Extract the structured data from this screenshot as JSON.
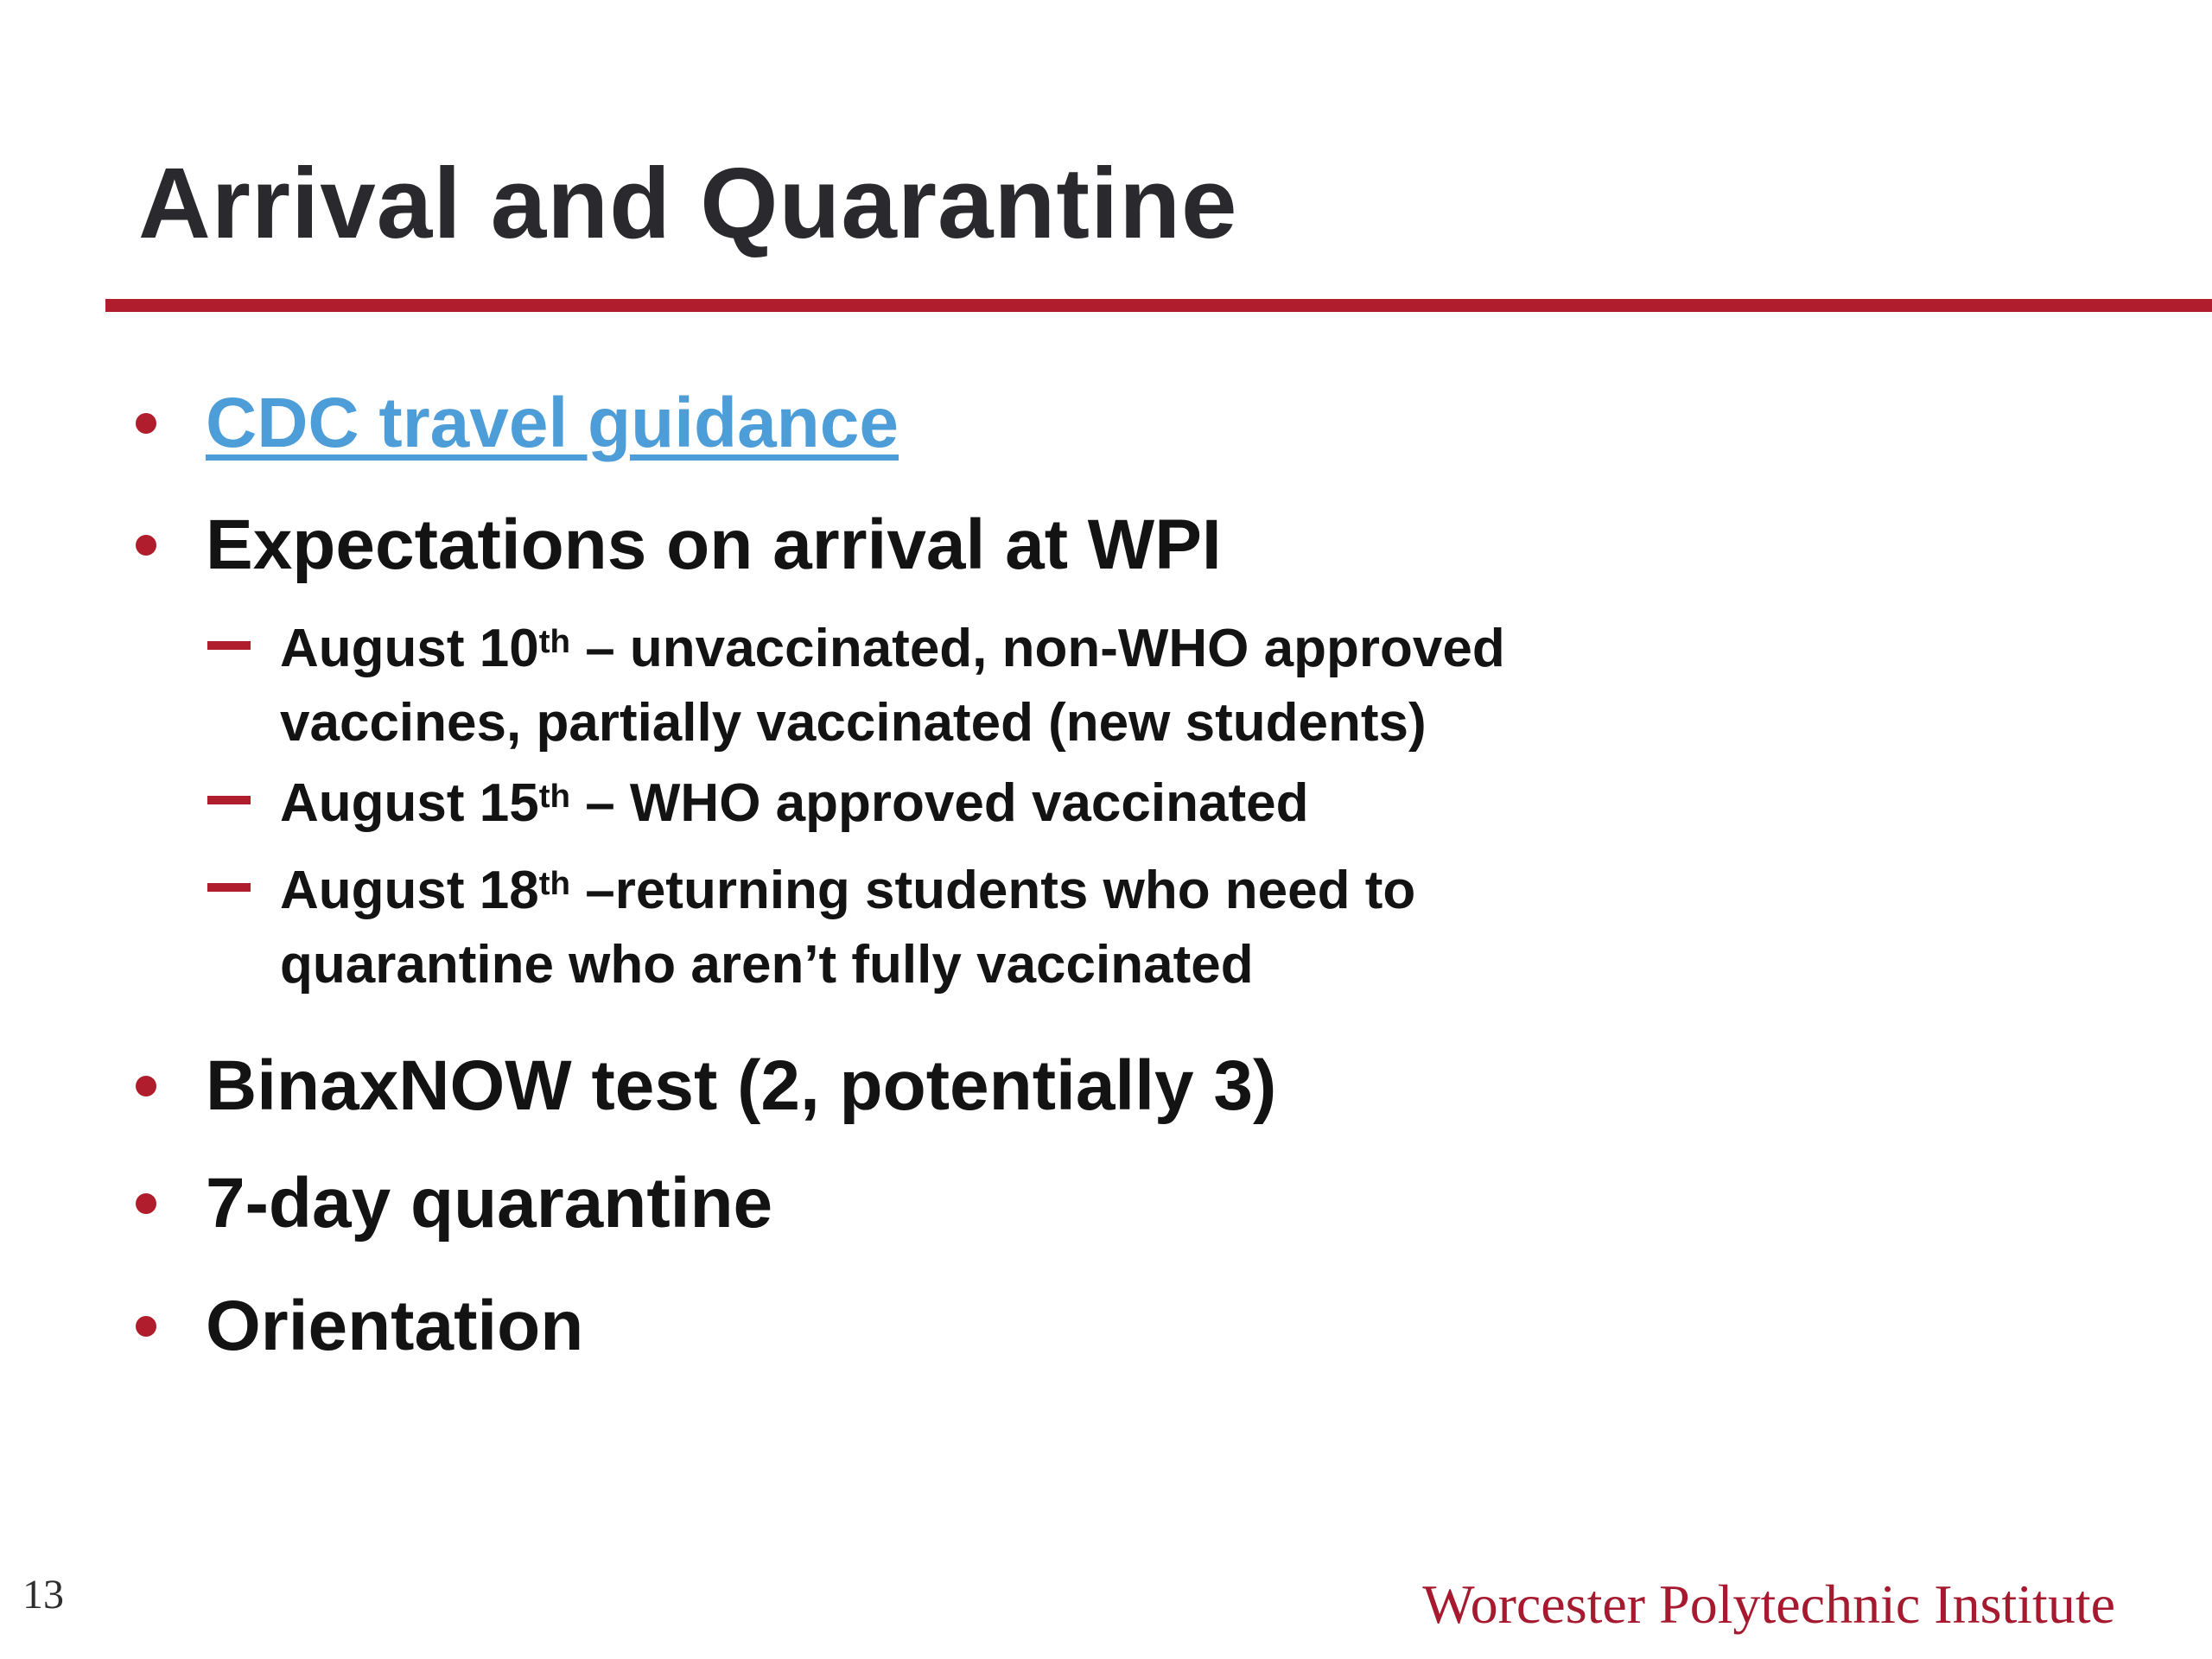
{
  "slide": {
    "title": "Arrival and Quarantine",
    "page_number": "13",
    "footer_text": "Worcester Polytechnic Institute",
    "colors": {
      "accent_red": "#B01E2E",
      "link_blue": "#4D9DD8",
      "footer_red": "#A6192E",
      "title_color": "#2A2A2E",
      "body_color": "#131313"
    },
    "bullets": {
      "cdc_link": {
        "label": "CDC travel guidance"
      },
      "expectations": {
        "label": "Expectations on arrival at WPI"
      },
      "binax": {
        "label": "BinaxNOW test (2, potentially 3)"
      },
      "quarantine": {
        "label": "7-day quarantine"
      },
      "orientation": {
        "label": "Orientation"
      }
    },
    "sub_bullets": [
      {
        "date": "August 10",
        "sup": "th",
        "line1_rest": " – unvaccinated, non-WHO approved",
        "line2": "vaccines, partially vaccinated (new students)"
      },
      {
        "date": "August 15",
        "sup": "th",
        "line1_rest": " – WHO approved vaccinated",
        "line2": ""
      },
      {
        "date": "August 18",
        "sup": "th",
        "line1_rest": " –returning students who need to",
        "line2": "quarantine who aren’t fully vaccinated"
      }
    ]
  }
}
